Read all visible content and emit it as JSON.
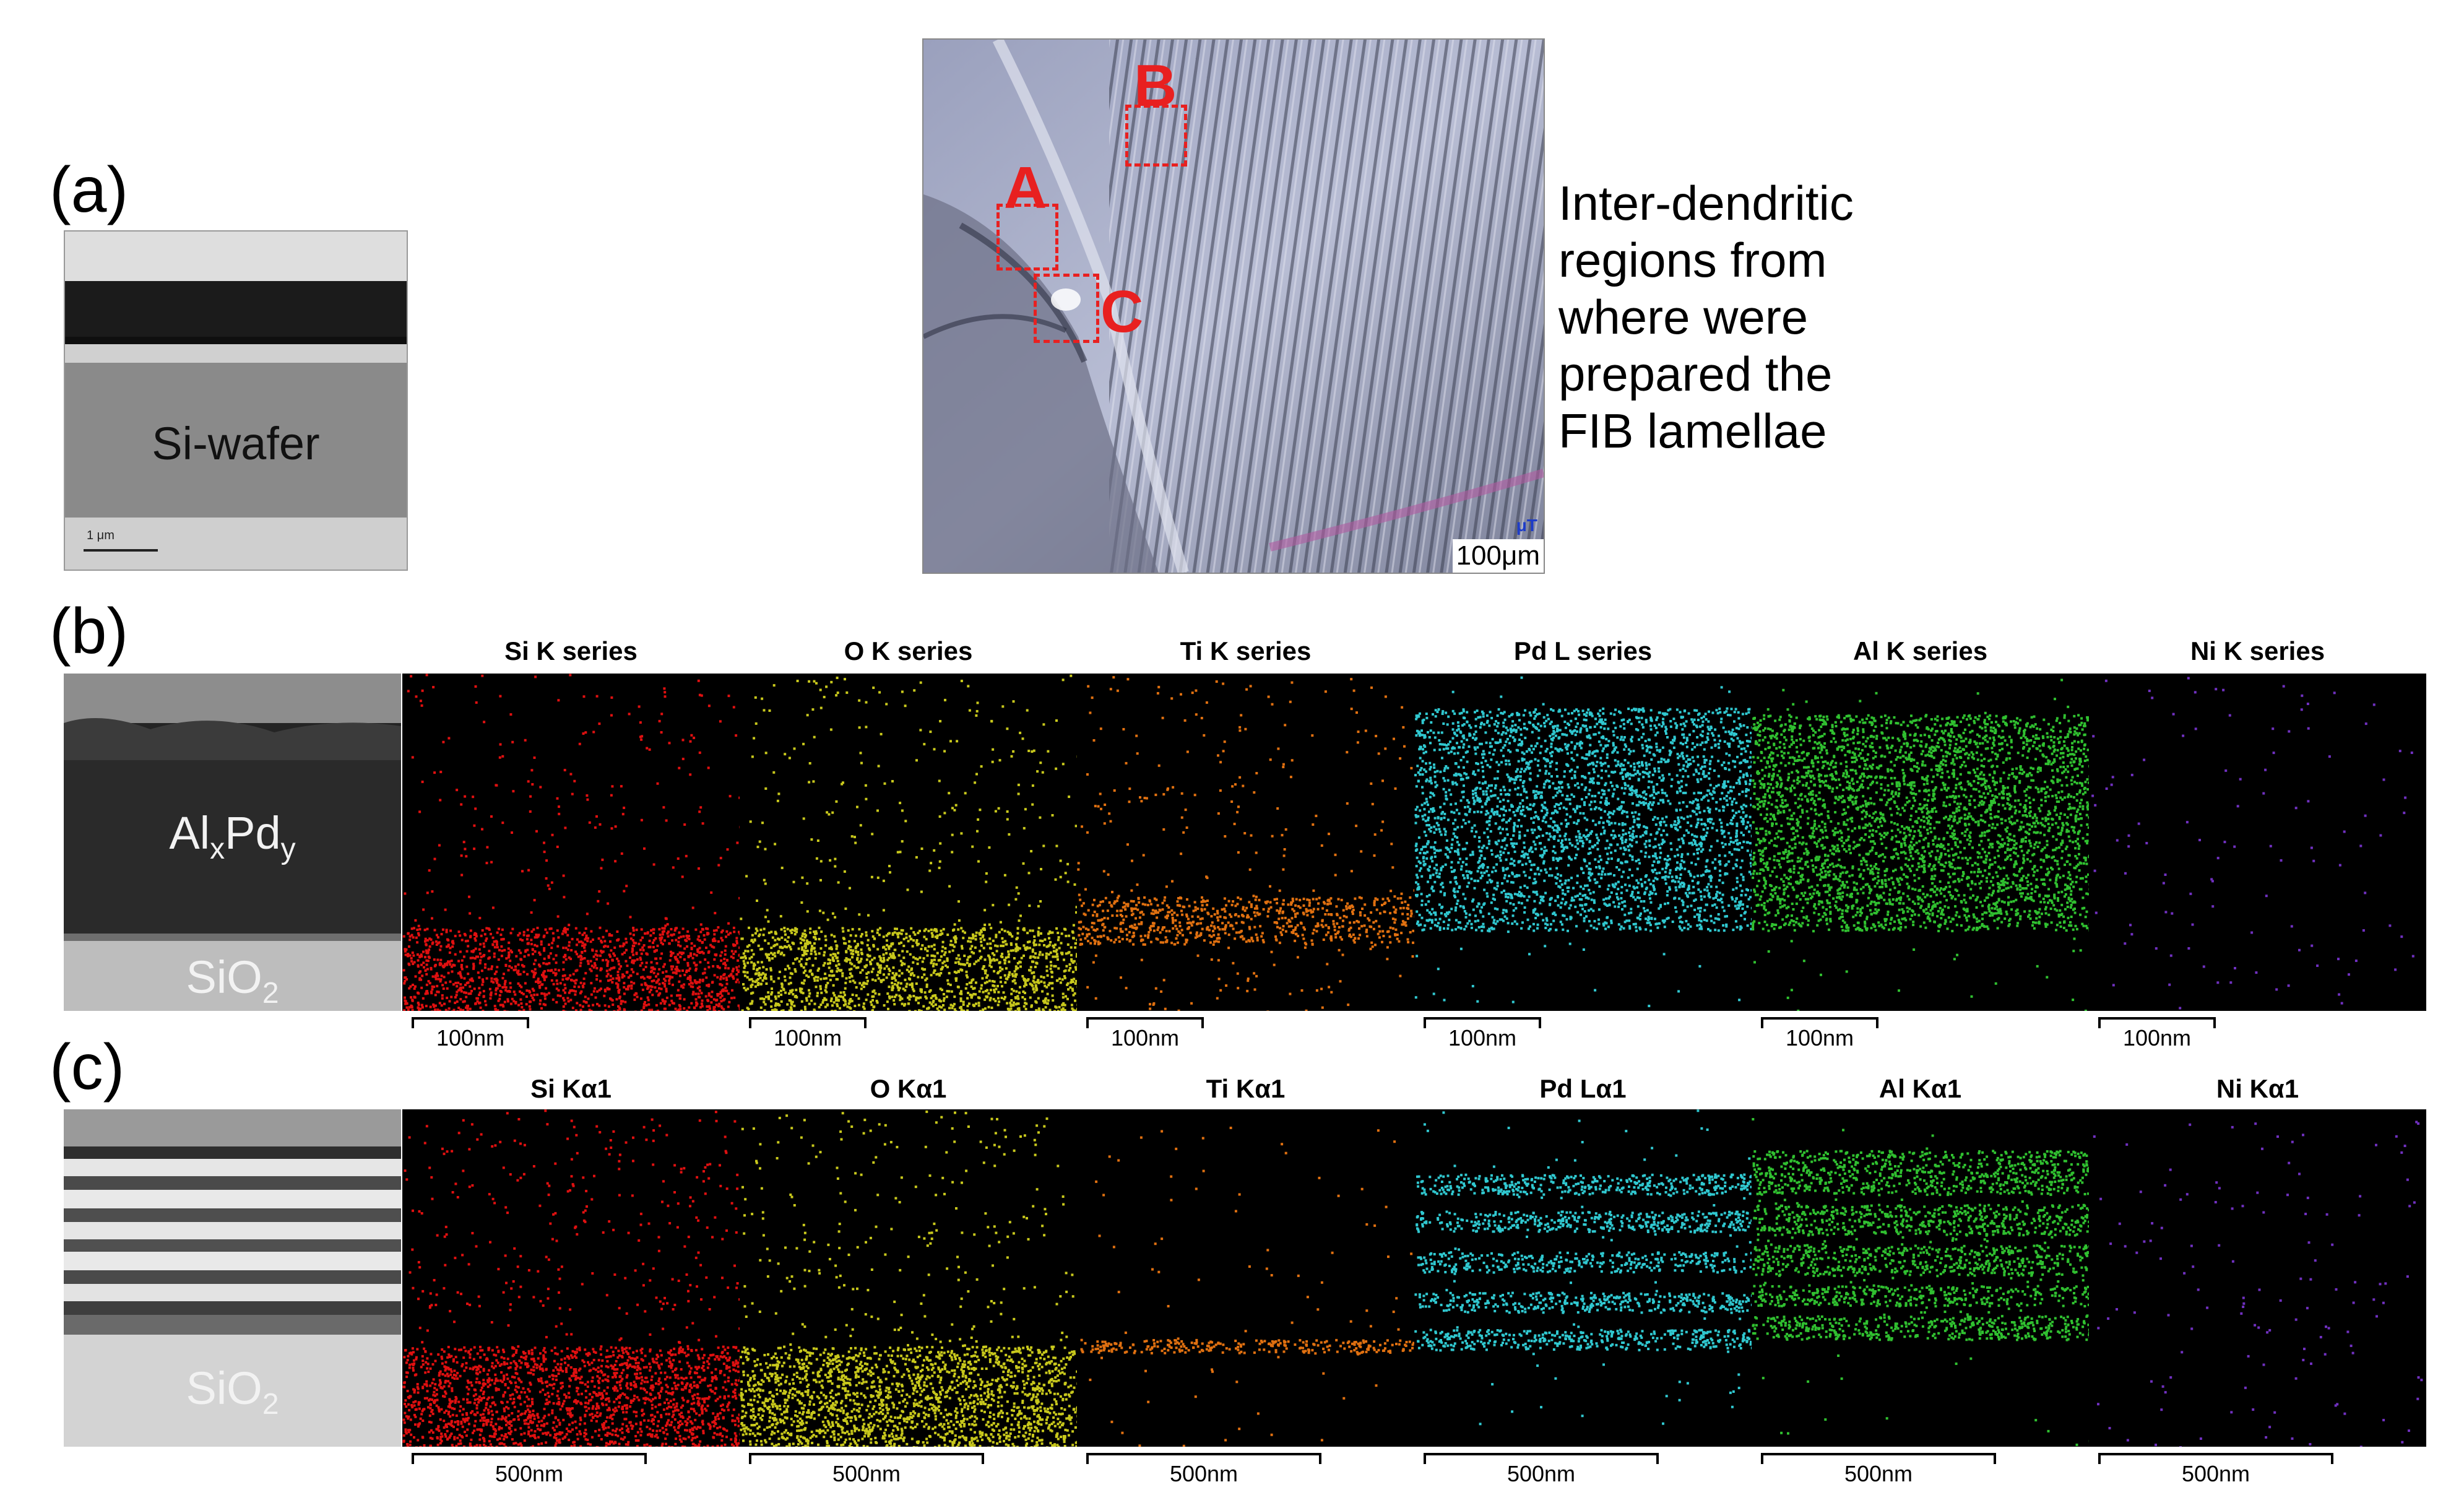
{
  "panel_a": {
    "label": "(a)",
    "image_text": "Si-wafer",
    "scale_text": "1 μm"
  },
  "micrograph": {
    "markers": [
      "A",
      "B",
      "C"
    ],
    "scale_text": "100μm",
    "caption_lines": [
      "Inter-dendritic",
      "regions from",
      "where were",
      "prepared the",
      "FIB lamellae"
    ]
  },
  "panel_b": {
    "label": "(b)",
    "image_text_main": "Al",
    "image_text_sub1": "x",
    "image_text_mid": "Pd",
    "image_text_sub2": "y",
    "image_text_oxide": "SiO",
    "image_text_oxide_sub": "2",
    "maps": [
      {
        "title": "Si K series",
        "color": "#e01010",
        "scale": "100nm"
      },
      {
        "title": "O K series",
        "color": "#c8c81c",
        "scale": "100nm"
      },
      {
        "title": "Ti K series",
        "color": "#e07010",
        "scale": "100nm"
      },
      {
        "title": "Pd L series",
        "color": "#30c8d0",
        "scale": "100nm"
      },
      {
        "title": "Al K series",
        "color": "#30c030",
        "scale": "100nm"
      },
      {
        "title": "Ni K series",
        "color": "#7030c0",
        "scale": "100nm"
      }
    ]
  },
  "panel_c": {
    "label": "(c)",
    "image_text_oxide": "SiO",
    "image_text_oxide_sub": "2",
    "maps": [
      {
        "title": "Si Kα1",
        "color": "#e01010",
        "scale": "500nm"
      },
      {
        "title": "O Kα1",
        "color": "#c8c81c",
        "scale": "500nm"
      },
      {
        "title": "Ti Kα1",
        "color": "#e07010",
        "scale": "500nm"
      },
      {
        "title": "Pd Lα1",
        "color": "#30c8d0",
        "scale": "500nm"
      },
      {
        "title": "Al Kα1",
        "color": "#30c030",
        "scale": "500nm"
      },
      {
        "title": "Ni Kα1",
        "color": "#7030c0",
        "scale": "500nm"
      }
    ]
  }
}
